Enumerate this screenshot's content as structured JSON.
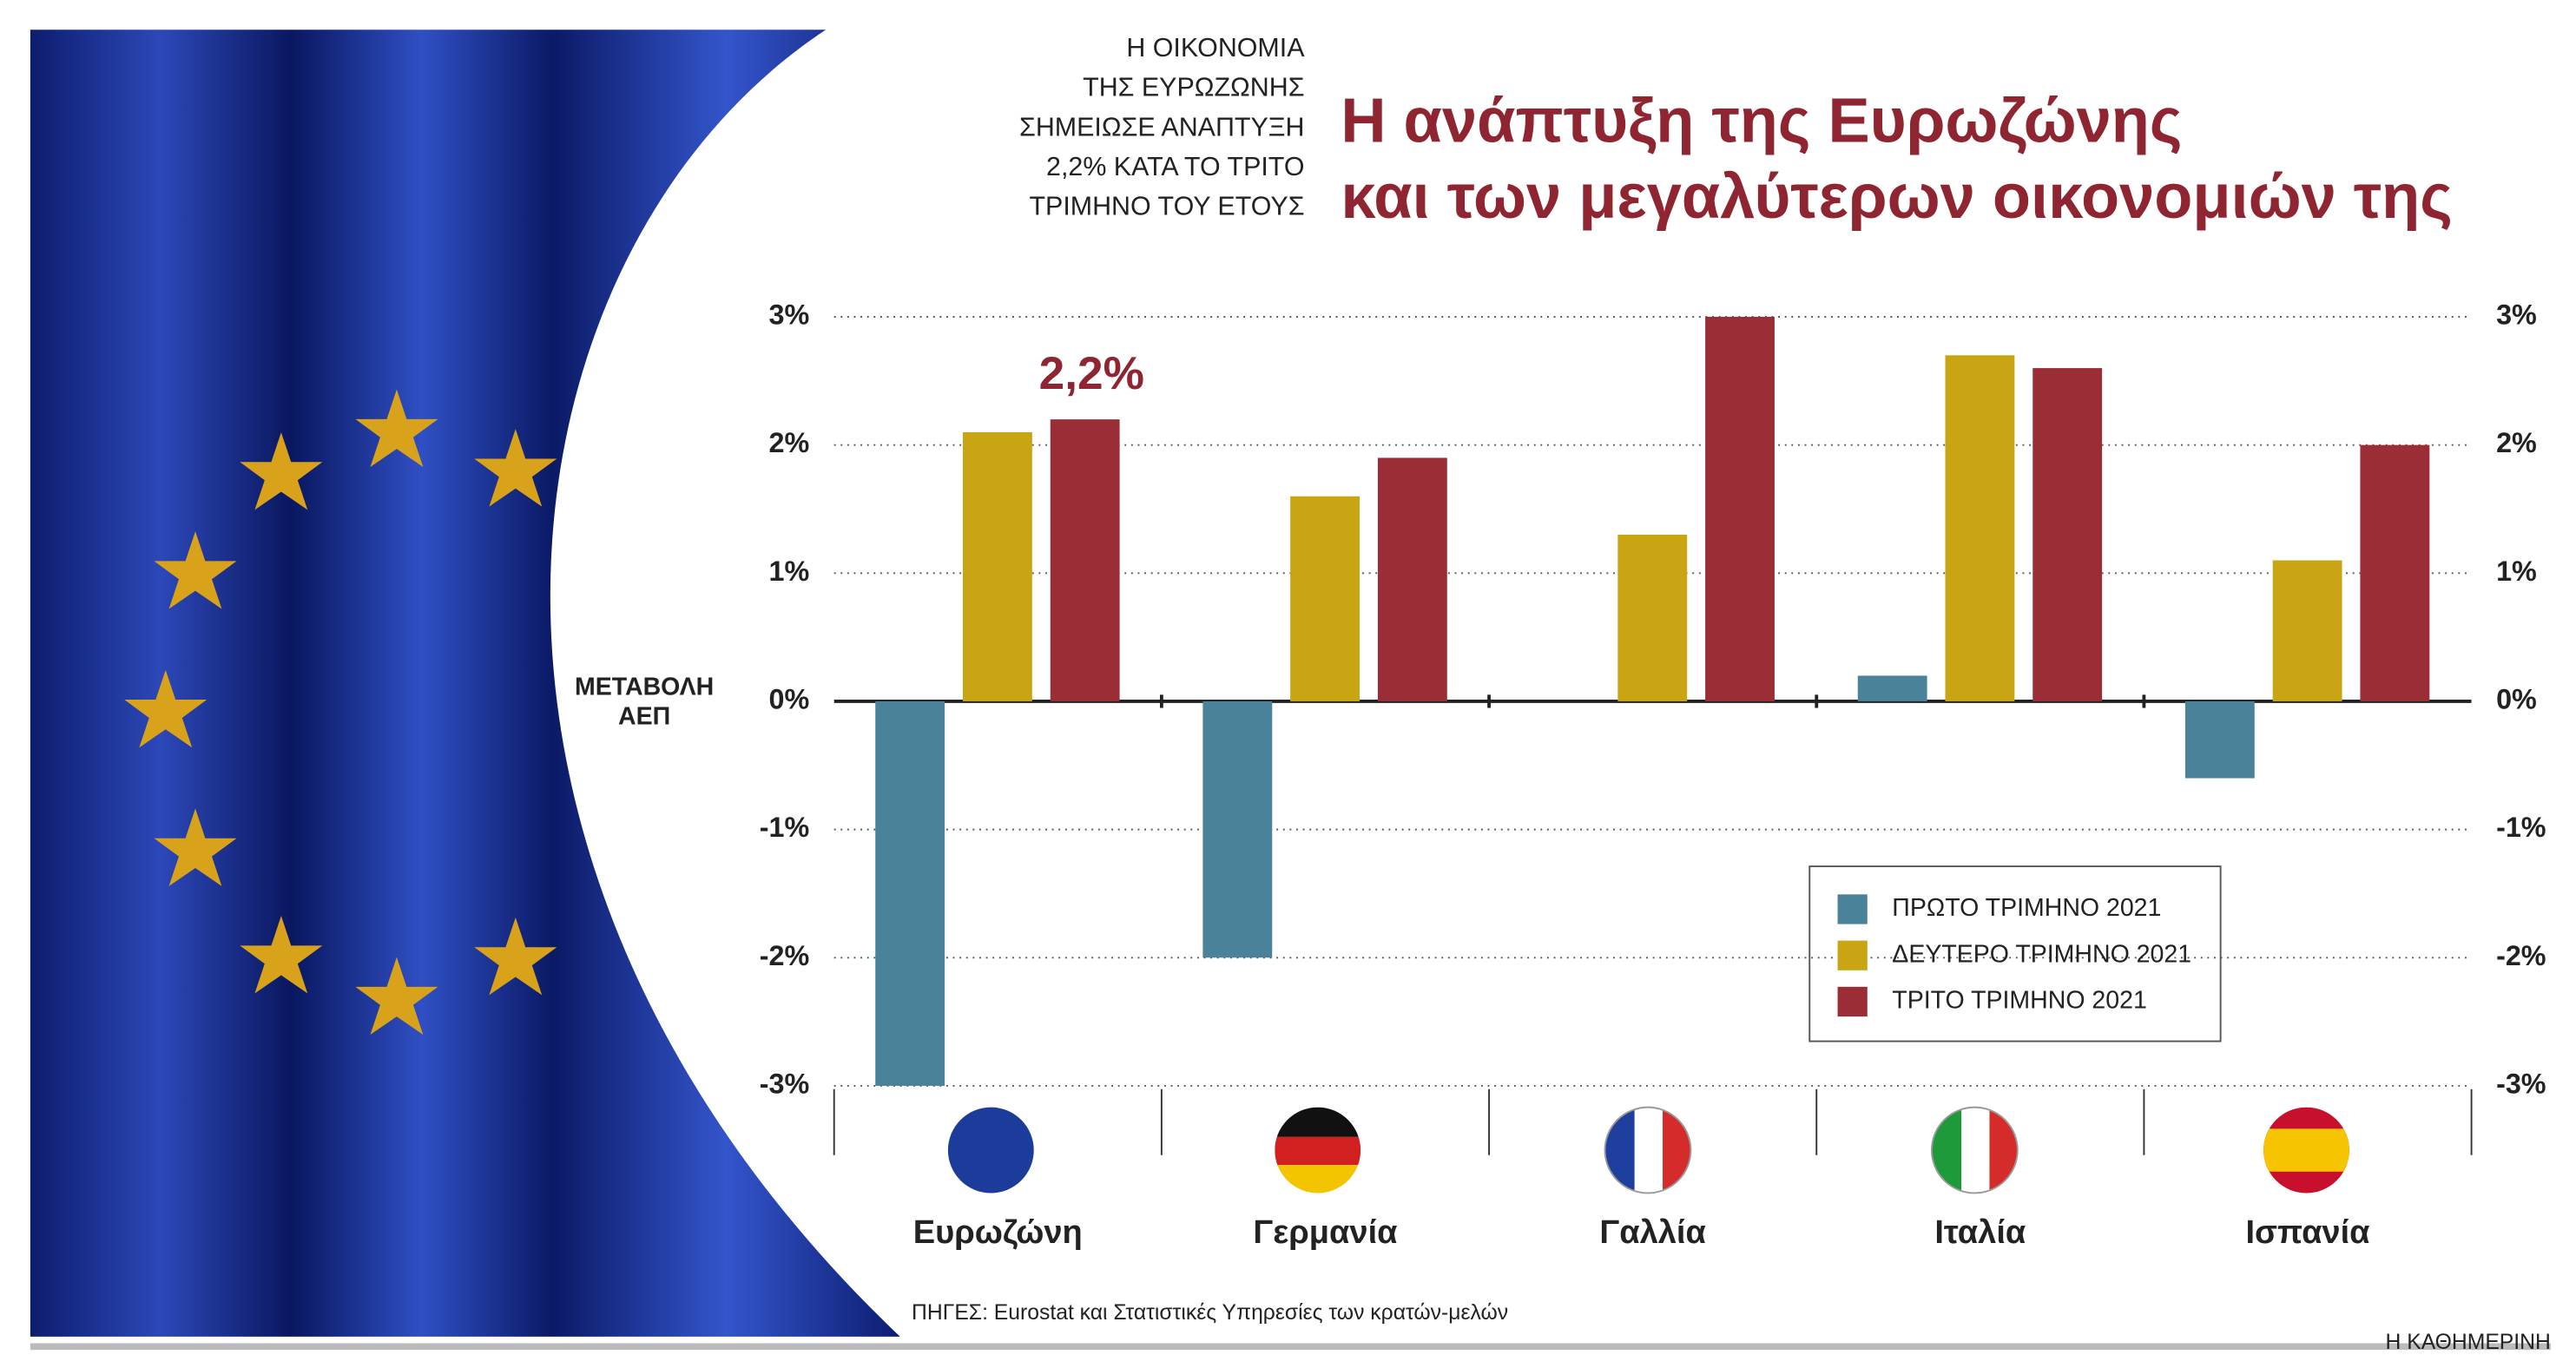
{
  "chart_data": {
    "type": "bar",
    "title": [
      "Η ανάπτυξη της Ευρωζώνης",
      "και των μεγαλύτερων οικονομιών της"
    ],
    "subtitle": [
      "Η ΟΙΚΟΝΟΜΙΑ",
      "ΤΗΣ ΕΥΡΩΖΩΝΗΣ",
      "ΣΗΜΕΙΩΣΕ ΑΝΑΠΤΥΞΗ",
      "2,2% ΚΑΤΑ ΤΟ ΤΡΙΤΟ",
      "ΤΡΙΜΗΝΟ ΤΟΥ ΕΤΟΥΣ"
    ],
    "ylabel": [
      "ΜΕΤΑΒΟΛΗ",
      "ΑΕΠ"
    ],
    "categories": [
      "Ευρωζώνη",
      "Γερμανία",
      "Γαλλία",
      "Ιταλία",
      "Ισπανία"
    ],
    "series": [
      {
        "name": "ΠΡΩΤΟ ΤΡΙΜΗΝΟ 2021",
        "color": "#4a8299",
        "values": [
          -3,
          -2,
          0,
          0.2,
          -0.6
        ]
      },
      {
        "name": "ΔΕΥΤΕΡΟ ΤΡΙΜΗΝΟ 2021",
        "color": "#c9a514",
        "values": [
          2.1,
          1.6,
          1.3,
          2.7,
          1.1
        ]
      },
      {
        "name": "ΤΡΙΤΟ ΤΡΙΜΗΝΟ 2021",
        "color": "#9b2d37",
        "values": [
          2.2,
          1.9,
          3,
          2.6,
          2
        ],
        "value_labels": [
          "2,2%",
          null,
          null,
          null,
          null
        ]
      }
    ],
    "ylim": [
      -3,
      3
    ],
    "yticks": [
      {
        "value": -3,
        "label": "-3%"
      },
      {
        "value": -2,
        "label": "-2%"
      },
      {
        "value": -1,
        "label": "-1%"
      },
      {
        "value": 0,
        "label": "0%"
      },
      {
        "value": 1,
        "label": "1%"
      },
      {
        "value": 2,
        "label": "2%"
      },
      {
        "value": 3,
        "label": "3%"
      }
    ],
    "grid": true,
    "source": "ΠΗΓΕΣ: Eurostat και Στατιστικές Υπηρεσίες των κρατών-μελών",
    "brand": "Η ΚΑΘΗΜΕΡΙΝΗ"
  }
}
